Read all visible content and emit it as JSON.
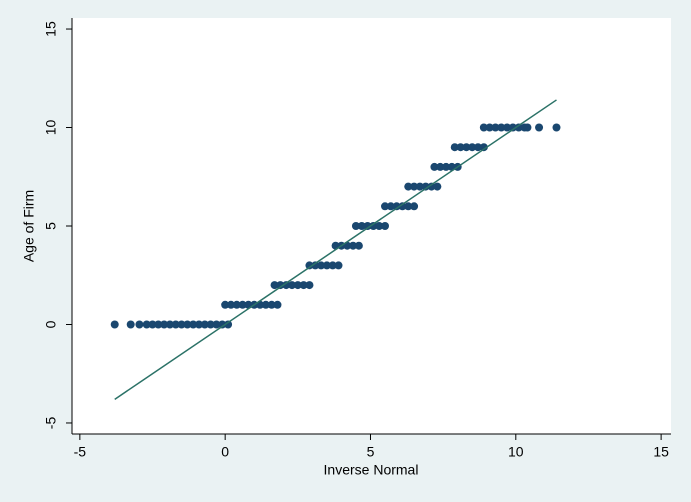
{
  "chart_data": {
    "type": "scatter",
    "x_label": "Inverse Normal",
    "y_label": "Age of Firm",
    "xlim": [
      -5.27,
      15.34
    ],
    "xticks": [
      -5,
      0,
      5,
      10,
      15
    ],
    "ylim": [
      -5.56,
      15.56
    ],
    "yticks": [
      -5,
      0,
      5,
      10,
      15
    ],
    "grid": false,
    "series": [
      {
        "color": "#1a476f",
        "x": [
          -3.8,
          -3.25,
          -2.95,
          -2.7,
          -2.5,
          -2.3,
          -2.1,
          -1.9,
          -1.7,
          -1.5,
          -1.3,
          -1.1,
          -0.9,
          -0.7,
          -0.5,
          -0.3,
          -0.1,
          0.1,
          0.0,
          0.2,
          0.4,
          0.6,
          0.8,
          1.0,
          1.2,
          1.4,
          1.6,
          1.8,
          1.7,
          1.9,
          2.1,
          2.3,
          2.5,
          2.7,
          2.9,
          2.9,
          3.1,
          3.3,
          3.5,
          3.7,
          3.9,
          3.8,
          4.0,
          4.2,
          4.4,
          4.6,
          4.5,
          4.7,
          4.9,
          5.1,
          5.3,
          5.5,
          5.5,
          5.7,
          5.9,
          6.1,
          6.3,
          6.5,
          6.3,
          6.5,
          6.7,
          6.9,
          7.1,
          7.3,
          7.2,
          7.4,
          7.6,
          7.8,
          8.0,
          7.9,
          8.1,
          8.3,
          8.5,
          8.7,
          8.9,
          8.9,
          9.1,
          9.3,
          9.5,
          9.7,
          9.9,
          10.1,
          10.3,
          10.4,
          10.8,
          11.4
        ],
        "values": [
          0,
          0,
          0,
          0,
          0,
          0,
          0,
          0,
          0,
          0,
          0,
          0,
          0,
          0,
          0,
          0,
          0,
          0,
          1,
          1,
          1,
          1,
          1,
          1,
          1,
          1,
          1,
          1,
          2,
          2,
          2,
          2,
          2,
          2,
          2,
          3,
          3,
          3,
          3,
          3,
          3,
          4,
          4,
          4,
          4,
          4,
          5,
          5,
          5,
          5,
          5,
          5,
          6,
          6,
          6,
          6,
          6,
          6,
          7,
          7,
          7,
          7,
          7,
          7,
          8,
          8,
          8,
          8,
          8,
          9,
          9,
          9,
          9,
          9,
          9,
          10,
          10,
          10,
          10,
          10,
          10,
          10,
          10,
          10,
          10,
          10
        ]
      },
      {
        "type": "line",
        "color": "#2b7267",
        "x": [
          -3.8,
          11.4
        ],
        "values": [
          -3.8,
          11.4
        ]
      }
    ]
  }
}
